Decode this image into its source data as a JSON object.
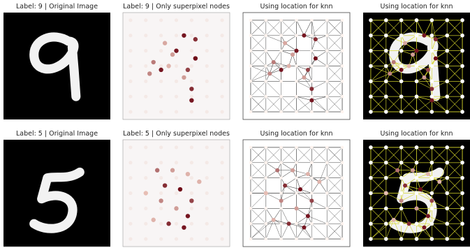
{
  "rows": [
    {
      "titles": [
        "Label: 9 | Original Image",
        "Label: 9 | Only superpixel nodes",
        "Using location for knn",
        "Using location for knn"
      ]
    },
    {
      "titles": [
        "Label: 5 | Original Image",
        "Label: 5 | Only superpixel nodes",
        "Using location for knn",
        "Using location for knn"
      ]
    }
  ]
}
